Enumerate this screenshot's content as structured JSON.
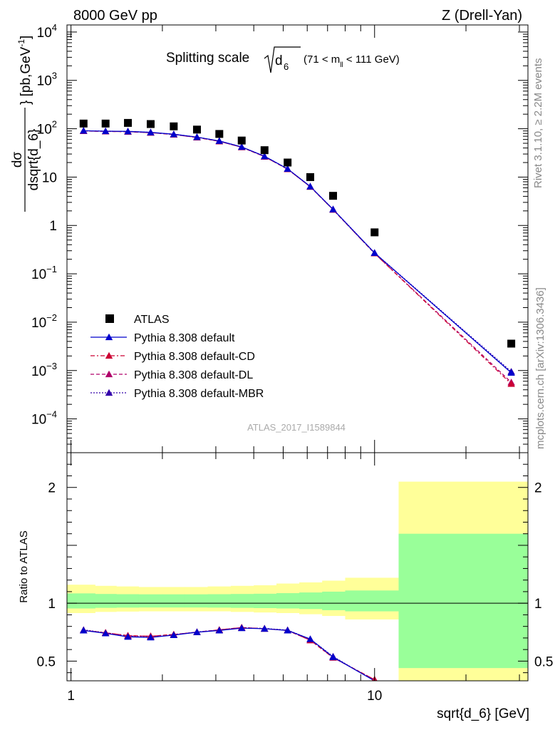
{
  "header": {
    "left": "8000 GeV pp",
    "right": "Z (Drell-Yan)"
  },
  "side_text": {
    "rivet": "Rivet 3.1.10, ≥ 2.2M events",
    "source": "mcplots.cern.ch [arXiv:1306.3436]"
  },
  "watermark": "ATLAS_2017_I1589844",
  "colors": {
    "data": "#000000",
    "default": "#0000cc",
    "default_cd": "#cc0033",
    "default_dl": "#b0006a",
    "default_mbr": "#3300aa",
    "band_yellow": "#ffff99",
    "band_green": "#99ff99"
  },
  "chart_data": [
    {
      "type": "line",
      "title_main": "Splitting scale",
      "title_var": "d",
      "title_var_sub": "6",
      "title_range": "(71 < m",
      "title_range_sub": "ll",
      "title_range_end": " < 111 GeV)",
      "xlabel": "sqrt{d_6} [GeV]",
      "ylabel_num": "dσ",
      "ylabel_den": "dsqrt{d_6}",
      "ylabel_unit": "[pb,GeV",
      "ylabel_unit_sup": "-1",
      "ylabel_unit_end": "]",
      "xscale": "log",
      "yscale": "log",
      "xlim": [
        0.97,
        32
      ],
      "ylim": [
        2e-05,
        14000
      ],
      "x_ticklabels": [
        "1",
        "10"
      ],
      "y_ticklabels": [
        {
          "base": "10",
          "exp": "4"
        },
        {
          "base": "10",
          "exp": "3"
        },
        {
          "base": "10",
          "exp": "2"
        },
        {
          "base": "10",
          "exp": ""
        },
        {
          "base": "1",
          "exp": ""
        },
        {
          "base": "10",
          "exp": "−1"
        },
        {
          "base": "10",
          "exp": "−2"
        },
        {
          "base": "10",
          "exp": "−3"
        },
        {
          "base": "10",
          "exp": "−4"
        }
      ],
      "legend_position": "lower-left",
      "x": [
        1.1,
        1.3,
        1.54,
        1.83,
        2.18,
        2.6,
        3.08,
        3.65,
        4.34,
        5.17,
        6.14,
        7.3,
        10.0,
        28.2
      ],
      "series": [
        {
          "name": "ATLAS",
          "marker": "square",
          "values": [
            128,
            128,
            132,
            125,
            112,
            96,
            78,
            57,
            36,
            20,
            10,
            4.1,
            0.72,
            0.0036
          ]
        },
        {
          "name": "Pythia 8.308 default",
          "marker": "triangle",
          "style": "solid",
          "values": [
            91,
            89,
            88,
            84,
            77,
            67,
            56,
            42,
            27,
            14.8,
            6.4,
            2.15,
            0.27,
            0.0009
          ]
        },
        {
          "name": "Pythia 8.308 default-CD",
          "marker": "triangle",
          "style": "dashdot",
          "values": [
            90,
            88,
            87,
            83,
            76,
            66,
            55,
            41.5,
            26.5,
            14.6,
            6.3,
            2.12,
            0.265,
            0.00053
          ]
        },
        {
          "name": "Pythia 8.308 default-DL",
          "marker": "triangle",
          "style": "dashed",
          "values": [
            90,
            88,
            87,
            83,
            76,
            66,
            55,
            41.5,
            26.5,
            14.6,
            6.3,
            2.12,
            0.265,
            0.00057
          ]
        },
        {
          "name": "Pythia 8.308 default-MBR",
          "marker": "triangle",
          "style": "dotted",
          "values": [
            91,
            89,
            88,
            84,
            77,
            67,
            56,
            42,
            27,
            14.8,
            6.4,
            2.16,
            0.272,
            0.00095
          ]
        }
      ]
    },
    {
      "type": "line",
      "ylabel": "Ratio to ATLAS",
      "xscale": "log",
      "xlim": [
        0.97,
        32
      ],
      "ylim": [
        0.33,
        2.3
      ],
      "y_ticklabels": [
        "2",
        "1",
        "0.5"
      ],
      "x_ticklabels": [
        "1",
        "10"
      ],
      "reference_line": 1,
      "bands": {
        "edges": [
          0.97,
          1.2,
          1.41,
          1.67,
          2.0,
          2.37,
          2.82,
          3.36,
          4.0,
          4.75,
          5.65,
          6.72,
          8.0,
          12.0,
          32
        ],
        "yellow_lo": [
          0.915,
          0.925,
          0.928,
          0.93,
          0.93,
          0.93,
          0.93,
          0.925,
          0.92,
          0.915,
          0.905,
          0.89,
          0.86,
          0.31
        ],
        "yellow_hi": [
          1.16,
          1.15,
          1.145,
          1.14,
          1.14,
          1.14,
          1.145,
          1.15,
          1.155,
          1.17,
          1.18,
          1.195,
          1.22,
          2.05
        ],
        "green_lo": [
          0.955,
          0.96,
          0.962,
          0.963,
          0.963,
          0.963,
          0.962,
          0.96,
          0.958,
          0.955,
          0.95,
          0.94,
          0.93,
          0.44
        ],
        "green_hi": [
          1.085,
          1.08,
          1.078,
          1.077,
          1.077,
          1.077,
          1.078,
          1.08,
          1.082,
          1.087,
          1.093,
          1.1,
          1.11,
          1.6
        ]
      },
      "x": [
        1.1,
        1.3,
        1.54,
        1.83,
        2.18,
        2.6,
        3.08,
        3.65,
        4.34,
        5.17,
        6.14,
        7.3,
        10.0
      ],
      "series": [
        {
          "name": "Pythia 8.308 default",
          "style": "solid",
          "values": [
            0.765,
            0.74,
            0.71,
            0.705,
            0.725,
            0.75,
            0.765,
            0.785,
            0.78,
            0.765,
            0.69,
            0.535,
            0.33
          ]
        },
        {
          "name": "Pythia 8.308 default-CD",
          "style": "dashdot",
          "values": [
            0.765,
            0.745,
            0.72,
            0.715,
            0.73,
            0.75,
            0.77,
            0.79,
            0.78,
            0.765,
            0.68,
            0.53,
            0.34
          ]
        },
        {
          "name": "Pythia 8.308 default-DL",
          "style": "dashed",
          "values": [
            0.765,
            0.745,
            0.72,
            0.715,
            0.73,
            0.75,
            0.77,
            0.79,
            0.78,
            0.765,
            0.68,
            0.53,
            0.34
          ]
        },
        {
          "name": "Pythia 8.308 default-MBR",
          "style": "dotted",
          "values": [
            0.77,
            0.745,
            0.715,
            0.71,
            0.728,
            0.752,
            0.768,
            0.788,
            0.782,
            0.768,
            0.69,
            0.54,
            0.33
          ]
        }
      ]
    }
  ]
}
